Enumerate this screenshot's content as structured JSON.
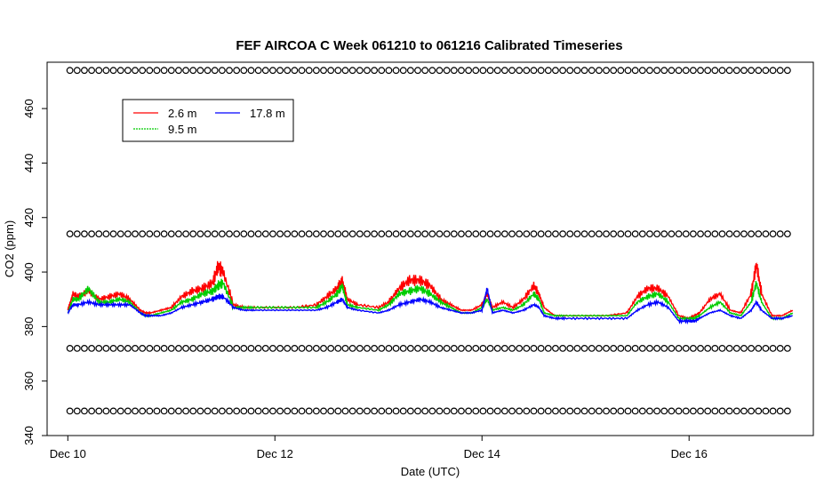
{
  "chart_data": {
    "type": "line",
    "title": "FEF AIRCOA C  Week 061210 to 061216  Calibrated Timeseries",
    "xlabel": "Date (UTC)",
    "ylabel": "CO2 (ppm)",
    "xlim": [
      -0.2,
      7.2
    ],
    "ylim": [
      340,
      477
    ],
    "x_ticks": [
      {
        "value": 0,
        "label": "Dec 10"
      },
      {
        "value": 2,
        "label": "Dec 12"
      },
      {
        "value": 4,
        "label": "Dec 14"
      },
      {
        "value": 6,
        "label": "Dec 16"
      }
    ],
    "y_ticks": [
      340,
      360,
      380,
      400,
      420,
      440,
      460
    ],
    "legend": {
      "position": "top-left",
      "entries": [
        {
          "label": "2.6 m",
          "color": "#ff0000"
        },
        {
          "label": "9.5 m",
          "color": "#00cc00"
        },
        {
          "label": "17.8 m",
          "color": "#0000ff"
        }
      ]
    },
    "calibration_levels": [
      474,
      414,
      372,
      349
    ],
    "series": [
      {
        "name": "2.6 m",
        "color": "#ff0000",
        "x": [
          0.0,
          0.05,
          0.1,
          0.2,
          0.3,
          0.4,
          0.5,
          0.6,
          0.7,
          0.75,
          0.8,
          0.9,
          1.0,
          1.1,
          1.2,
          1.3,
          1.4,
          1.45,
          1.5,
          1.6,
          1.7,
          1.8,
          2.0,
          2.2,
          2.4,
          2.5,
          2.6,
          2.65,
          2.7,
          2.8,
          3.0,
          3.1,
          3.2,
          3.3,
          3.4,
          3.5,
          3.6,
          3.7,
          3.8,
          3.9,
          4.0,
          4.05,
          4.1,
          4.2,
          4.3,
          4.4,
          4.5,
          4.55,
          4.6,
          4.7,
          4.8,
          5.0,
          5.2,
          5.4,
          5.5,
          5.6,
          5.7,
          5.8,
          5.9,
          6.0,
          6.05,
          6.1,
          6.2,
          6.3,
          6.4,
          6.5,
          6.6,
          6.65,
          6.7,
          6.8,
          6.9,
          7.0
        ],
        "values": [
          386,
          392,
          391,
          393,
          390,
          391,
          392,
          390,
          386,
          385,
          385,
          386,
          387,
          391,
          393,
          394,
          396,
          402,
          400,
          388,
          387,
          387,
          387,
          387,
          388,
          391,
          394,
          397,
          390,
          388,
          387,
          389,
          394,
          397,
          397,
          395,
          390,
          388,
          386,
          386,
          388,
          392,
          387,
          389,
          387,
          390,
          395,
          392,
          387,
          384,
          384,
          384,
          384,
          385,
          391,
          394,
          394,
          391,
          384,
          383,
          384,
          385,
          390,
          392,
          386,
          385,
          392,
          403,
          392,
          384,
          384,
          386
        ]
      },
      {
        "name": "9.5 m",
        "color": "#00cc00",
        "x": [
          0.0,
          0.05,
          0.1,
          0.2,
          0.3,
          0.4,
          0.5,
          0.6,
          0.7,
          0.75,
          0.8,
          0.9,
          1.0,
          1.1,
          1.2,
          1.3,
          1.4,
          1.45,
          1.5,
          1.6,
          1.7,
          1.8,
          2.0,
          2.2,
          2.4,
          2.5,
          2.6,
          2.65,
          2.7,
          2.8,
          3.0,
          3.1,
          3.2,
          3.3,
          3.4,
          3.5,
          3.6,
          3.7,
          3.8,
          3.9,
          4.0,
          4.05,
          4.1,
          4.2,
          4.3,
          4.4,
          4.5,
          4.55,
          4.6,
          4.7,
          4.8,
          5.0,
          5.2,
          5.4,
          5.5,
          5.6,
          5.7,
          5.8,
          5.9,
          6.0,
          6.05,
          6.1,
          6.2,
          6.3,
          6.4,
          6.5,
          6.6,
          6.65,
          6.7,
          6.8,
          6.9,
          7.0
        ],
        "values": [
          385,
          390,
          390,
          394,
          389,
          389,
          390,
          389,
          385,
          384,
          384,
          385,
          386,
          389,
          390,
          392,
          393,
          395,
          396,
          387,
          387,
          387,
          387,
          387,
          387,
          389,
          392,
          395,
          388,
          387,
          386,
          388,
          392,
          393,
          394,
          392,
          389,
          387,
          385,
          385,
          387,
          390,
          386,
          387,
          386,
          388,
          392,
          390,
          385,
          384,
          384,
          384,
          384,
          384,
          389,
          391,
          392,
          389,
          383,
          383,
          383,
          384,
          387,
          389,
          385,
          384,
          389,
          396,
          389,
          383,
          383,
          385
        ]
      },
      {
        "name": "17.8 m",
        "color": "#0000ff",
        "x": [
          0.0,
          0.05,
          0.1,
          0.2,
          0.3,
          0.4,
          0.5,
          0.6,
          0.7,
          0.75,
          0.8,
          0.9,
          1.0,
          1.1,
          1.2,
          1.3,
          1.4,
          1.45,
          1.5,
          1.6,
          1.7,
          1.8,
          2.0,
          2.2,
          2.4,
          2.5,
          2.6,
          2.65,
          2.7,
          2.8,
          3.0,
          3.1,
          3.2,
          3.3,
          3.4,
          3.5,
          3.6,
          3.7,
          3.8,
          3.9,
          4.0,
          4.05,
          4.1,
          4.2,
          4.3,
          4.4,
          4.5,
          4.55,
          4.6,
          4.7,
          4.8,
          5.0,
          5.2,
          5.4,
          5.5,
          5.6,
          5.7,
          5.8,
          5.9,
          6.0,
          6.05,
          6.1,
          6.2,
          6.3,
          6.4,
          6.5,
          6.6,
          6.65,
          6.7,
          6.8,
          6.9,
          7.0
        ],
        "values": [
          385,
          388,
          388,
          389,
          388,
          388,
          388,
          388,
          385,
          384,
          384,
          384,
          385,
          387,
          388,
          389,
          390,
          391,
          391,
          387,
          386,
          386,
          386,
          386,
          386,
          387,
          389,
          390,
          387,
          386,
          385,
          386,
          388,
          389,
          390,
          389,
          387,
          386,
          385,
          385,
          386,
          394,
          385,
          386,
          385,
          386,
          388,
          387,
          384,
          383,
          383,
          383,
          383,
          383,
          386,
          388,
          389,
          387,
          382,
          382,
          382,
          383,
          385,
          386,
          384,
          383,
          386,
          389,
          386,
          383,
          383,
          384
        ]
      }
    ]
  }
}
